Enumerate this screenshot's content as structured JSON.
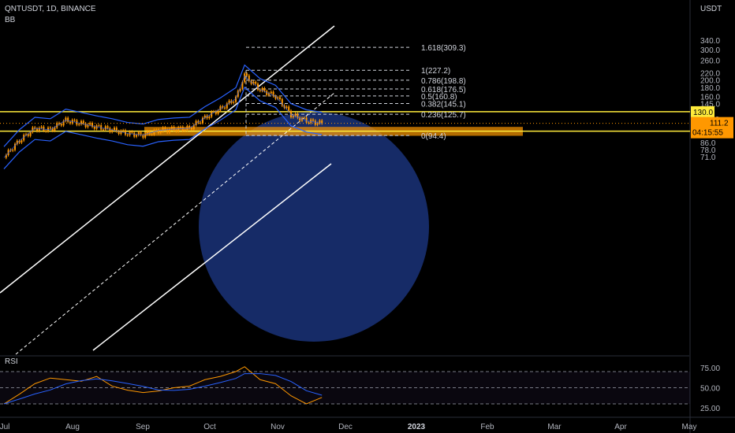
{
  "header": {
    "symbol": "QNTUSDT, 1D, BINANCE",
    "indicator": "BB",
    "rsi_label": "RSI",
    "currency": "USDT"
  },
  "price_axis": {
    "ticks": [
      "340.0",
      "300.0",
      "260.0",
      "220.0",
      "200.0",
      "180.0",
      "160.0",
      "145.0",
      "118.0",
      "96.0",
      "86.0",
      "78.0",
      "71.0"
    ]
  },
  "rsi_axis": {
    "ticks": [
      "75.00",
      "50.00",
      "25.00"
    ]
  },
  "time_axis": {
    "ticks": [
      "Jul",
      "Aug",
      "Sep",
      "Oct",
      "Nov",
      "Dec",
      "2023",
      "Feb",
      "Mar",
      "Apr",
      "May"
    ]
  },
  "price_tags": {
    "level_130": "130.0",
    "last_price": "111.2",
    "countdown": "04:15:55",
    "level_100": "100.0"
  },
  "fib_labels": [
    "1.618(309.3)",
    "1(227.2)",
    "0.786(198.8)",
    "0.618(176.5)",
    "0.5(160.8)",
    "0.382(145.1)",
    "0.236(125.7)",
    "0(94.4)"
  ],
  "colors": {
    "candles": "#ff9800",
    "bollinger": "#2962ff",
    "support_zone": "#ff9800",
    "levels": "#ffeb3b",
    "circle": "#1e3a8a",
    "rsi": "#ff9800",
    "rsi_ma": "#2962ff"
  },
  "chart_data": {
    "type": "candlestick",
    "title": "QNTUSDT, 1D, BINANCE",
    "ylabel": "USDT",
    "y_scale": "log",
    "ylim": [
      69,
      360
    ],
    "close_series_approx": [
      {
        "x": "Jul 01",
        "y": 70
      },
      {
        "x": "Jul 08",
        "y": 88
      },
      {
        "x": "Jul 15",
        "y": 104
      },
      {
        "x": "Jul 22",
        "y": 102
      },
      {
        "x": "Jul 29",
        "y": 116
      },
      {
        "x": "Aug 05",
        "y": 111
      },
      {
        "x": "Aug 12",
        "y": 106
      },
      {
        "x": "Aug 19",
        "y": 102
      },
      {
        "x": "Aug 26",
        "y": 97
      },
      {
        "x": "Sep 02",
        "y": 95
      },
      {
        "x": "Sep 09",
        "y": 101
      },
      {
        "x": "Sep 16",
        "y": 103
      },
      {
        "x": "Sep 23",
        "y": 104
      },
      {
        "x": "Sep 30",
        "y": 120
      },
      {
        "x": "Oct 07",
        "y": 135
      },
      {
        "x": "Oct 14",
        "y": 155
      },
      {
        "x": "Oct 18",
        "y": 210
      },
      {
        "x": "Oct 25",
        "y": 175
      },
      {
        "x": "Nov 01",
        "y": 160
      },
      {
        "x": "Nov 08",
        "y": 125
      },
      {
        "x": "Nov 15",
        "y": 115
      },
      {
        "x": "Nov 22",
        "y": 111.2
      }
    ],
    "horizontal_levels": [
      130.0,
      100.0
    ],
    "support_zone": [
      94.0,
      106.0
    ],
    "fibonacci": [
      {
        "ratio": "1.618",
        "price": 309.3
      },
      {
        "ratio": "1",
        "price": 227.2
      },
      {
        "ratio": "0.786",
        "price": 198.8
      },
      {
        "ratio": "0.618",
        "price": 176.5
      },
      {
        "ratio": "0.5",
        "price": 160.8
      },
      {
        "ratio": "0.382",
        "price": 145.1
      },
      {
        "ratio": "0.236",
        "price": 125.7
      },
      {
        "ratio": "0",
        "price": 94.4
      }
    ],
    "rsi": {
      "ylim": [
        20,
        80
      ],
      "levels": [
        70,
        50,
        30
      ],
      "values_approx": [
        30,
        42,
        55,
        62,
        60,
        58,
        64,
        52,
        47,
        44,
        46,
        50,
        52,
        60,
        64,
        70,
        76,
        60,
        55,
        40,
        30,
        38
      ]
    }
  }
}
